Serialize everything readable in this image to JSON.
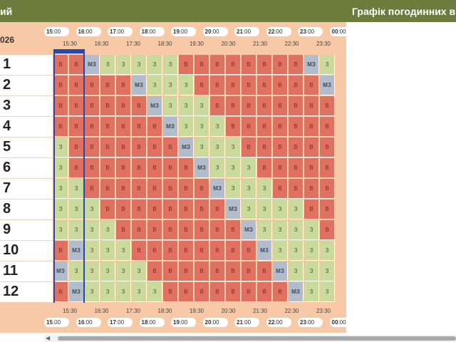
{
  "header": {
    "left_title": "ий",
    "right_title": "Графік погодинних ві"
  },
  "date_label": "026",
  "hour_labels": [
    "15",
    "16",
    "17",
    "18",
    "19",
    "20",
    "21",
    "22",
    "23",
    "00"
  ],
  "minutes_label": "00",
  "half_labels": [
    "15:30",
    "16:30",
    "17:30",
    "18:30",
    "19:30",
    "20:30",
    "21:30",
    "22:30",
    "23:30"
  ],
  "selected_column_label": "***",
  "colors": {
    "off": "#e0705f",
    "on": "#c9da9c",
    "maybe": "#b3bccb",
    "header": "#6e7b3d",
    "panel": "#f8c9a6",
    "selection": "#2b47a8"
  },
  "legend_letters": {
    "B": "В",
    "Z": "З",
    "MZ": "МЗ"
  },
  "queues": [
    {
      "label": "1",
      "cells": [
        "В",
        "В",
        "МЗ",
        "З",
        "З",
        "З",
        "З",
        "З",
        "В",
        "В",
        "В",
        "В",
        "В",
        "В",
        "В",
        "В",
        "МЗ",
        "З"
      ]
    },
    {
      "label": "2",
      "cells": [
        "В",
        "В",
        "В",
        "В",
        "В",
        "МЗ",
        "З",
        "З",
        "З",
        "В",
        "В",
        "В",
        "В",
        "В",
        "В",
        "В",
        "В",
        "МЗ"
      ]
    },
    {
      "label": "3",
      "cells": [
        "В",
        "В",
        "В",
        "В",
        "В",
        "В",
        "МЗ",
        "З",
        "З",
        "З",
        "В",
        "В",
        "В",
        "В",
        "В",
        "В",
        "В",
        "В"
      ]
    },
    {
      "label": "4",
      "cells": [
        "В",
        "В",
        "В",
        "В",
        "В",
        "В",
        "В",
        "МЗ",
        "З",
        "З",
        "З",
        "В",
        "В",
        "В",
        "В",
        "В",
        "В",
        "В"
      ]
    },
    {
      "label": "5",
      "cells": [
        "З",
        "В",
        "В",
        "В",
        "В",
        "В",
        "В",
        "В",
        "МЗ",
        "З",
        "З",
        "З",
        "В",
        "В",
        "В",
        "В",
        "В",
        "В"
      ]
    },
    {
      "label": "6",
      "cells": [
        "З",
        "В",
        "В",
        "В",
        "В",
        "В",
        "В",
        "В",
        "В",
        "МЗ",
        "З",
        "З",
        "З",
        "В",
        "В",
        "В",
        "В",
        "В"
      ]
    },
    {
      "label": "7",
      "cells": [
        "З",
        "З",
        "В",
        "В",
        "В",
        "В",
        "В",
        "В",
        "В",
        "В",
        "МЗ",
        "З",
        "З",
        "З",
        "В",
        "В",
        "В",
        "В"
      ]
    },
    {
      "label": "8",
      "cells": [
        "З",
        "З",
        "З",
        "В",
        "В",
        "В",
        "В",
        "В",
        "В",
        "В",
        "В",
        "МЗ",
        "З",
        "З",
        "З",
        "З",
        "В",
        "В"
      ]
    },
    {
      "label": "9",
      "cells": [
        "З",
        "З",
        "З",
        "З",
        "В",
        "В",
        "В",
        "В",
        "В",
        "В",
        "В",
        "В",
        "МЗ",
        "З",
        "З",
        "З",
        "З",
        "В"
      ]
    },
    {
      "label": "10",
      "cells": [
        "В",
        "МЗ",
        "З",
        "З",
        "З",
        "В",
        "В",
        "В",
        "В",
        "В",
        "В",
        "В",
        "В",
        "МЗ",
        "З",
        "З",
        "З",
        "З"
      ]
    },
    {
      "label": "11",
      "cells": [
        "МЗ",
        "З",
        "З",
        "З",
        "З",
        "З",
        "В",
        "В",
        "В",
        "В",
        "В",
        "В",
        "В",
        "В",
        "МЗ",
        "З",
        "З",
        "З"
      ]
    },
    {
      "label": "12",
      "cells": [
        "В",
        "МЗ",
        "З",
        "З",
        "З",
        "З",
        "З",
        "В",
        "В",
        "В",
        "В",
        "В",
        "В",
        "В",
        "В",
        "МЗ",
        "З",
        "З"
      ]
    }
  ]
}
